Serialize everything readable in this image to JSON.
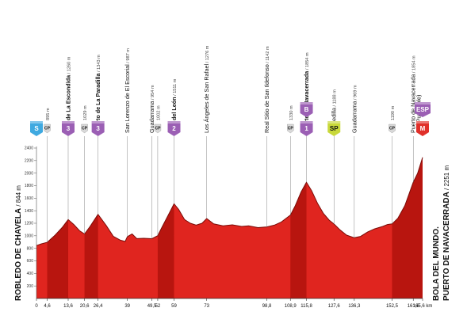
{
  "chart_data": {
    "type": "area",
    "title": "",
    "xlabel": "",
    "ylabel": "",
    "ylim": [
      0,
      2400
    ],
    "xlim": [
      0,
      165.6
    ],
    "yticks": [
      200,
      400,
      600,
      800,
      1000,
      1200,
      1400,
      1600,
      1800,
      2000,
      2200,
      2400
    ],
    "xticks": [
      "0",
      "4,6",
      "13,6",
      "20,6",
      "26,4",
      "39",
      "49,5",
      "52",
      "59",
      "73",
      "98,8",
      "108,9",
      "115,8",
      "127,6",
      "136,3",
      "152,5",
      "161,6",
      "165,6 km"
    ],
    "grid": false,
    "profile": [
      [
        0,
        844
      ],
      [
        2,
        870
      ],
      [
        4.6,
        895
      ],
      [
        8,
        1010
      ],
      [
        11,
        1130
      ],
      [
        13.6,
        1260
      ],
      [
        16,
        1180
      ],
      [
        18.5,
        1080
      ],
      [
        20.6,
        1029
      ],
      [
        23,
        1150
      ],
      [
        26.4,
        1343
      ],
      [
        30,
        1160
      ],
      [
        33,
        990
      ],
      [
        36,
        930
      ],
      [
        38,
        910
      ],
      [
        39,
        987
      ],
      [
        41,
        1030
      ],
      [
        43,
        955
      ],
      [
        46,
        960
      ],
      [
        49.5,
        954
      ],
      [
        52,
        1002
      ],
      [
        54,
        1150
      ],
      [
        56.5,
        1330
      ],
      [
        59,
        1511
      ],
      [
        61,
        1420
      ],
      [
        63.5,
        1260
      ],
      [
        66,
        1200
      ],
      [
        68.5,
        1170
      ],
      [
        71,
        1200
      ],
      [
        73,
        1276
      ],
      [
        76,
        1190
      ],
      [
        80,
        1160
      ],
      [
        84,
        1175
      ],
      [
        88,
        1150
      ],
      [
        91,
        1160
      ],
      [
        95,
        1130
      ],
      [
        98.8,
        1142
      ],
      [
        102,
        1170
      ],
      [
        105,
        1220
      ],
      [
        108.9,
        1330
      ],
      [
        111,
        1480
      ],
      [
        113.5,
        1700
      ],
      [
        115.8,
        1854
      ],
      [
        118,
        1720
      ],
      [
        120.5,
        1520
      ],
      [
        123,
        1360
      ],
      [
        125.5,
        1250
      ],
      [
        127.6,
        1188
      ],
      [
        130,
        1100
      ],
      [
        133,
        1010
      ],
      [
        136.3,
        969
      ],
      [
        139,
        990
      ],
      [
        142,
        1060
      ],
      [
        145,
        1110
      ],
      [
        148.5,
        1150
      ],
      [
        150.5,
        1180
      ],
      [
        152.5,
        1190
      ],
      [
        155,
        1280
      ],
      [
        158,
        1480
      ],
      [
        161.6,
        1854
      ],
      [
        163.5,
        2000
      ],
      [
        165.6,
        2251
      ]
    ],
    "annotations": [
      {
        "km": 13.6,
        "text": "Alto de La Escondida",
        "alt": "1260 m",
        "bold": true
      },
      {
        "km": 20.6,
        "text": "",
        "alt": "1029 m",
        "bold": false
      },
      {
        "km": 26.4,
        "text": "Puerto de La Paradilla",
        "alt": "1343 m",
        "bold": true
      },
      {
        "km": 4.6,
        "text": "",
        "alt": "895 m",
        "bold": false
      },
      {
        "km": 39,
        "text": "San Lorenzo de El Escorial",
        "alt": "987 m",
        "bold": false
      },
      {
        "km": 49.5,
        "text": "Guadarrama",
        "alt": "954 m",
        "bold": false
      },
      {
        "km": 52,
        "text": "",
        "alt": "1002 m",
        "bold": false
      },
      {
        "km": 59,
        "text": "Alto del León",
        "alt": "1511 m",
        "bold": true
      },
      {
        "km": 73,
        "text": "Los Ángeles de San Rafael",
        "alt": "1276 m",
        "bold": false
      },
      {
        "km": 98.8,
        "text": "Real Sitio de San Ildefonso",
        "alt": "1142 m",
        "bold": false
      },
      {
        "km": 108.9,
        "text": "",
        "alt": "1330 m",
        "bold": false
      },
      {
        "km": 115.8,
        "text": "Puerto de Navacerrada",
        "alt": "1854 m",
        "bold": true
      },
      {
        "km": 127.6,
        "text": "Cercedilla",
        "alt": "1188 m",
        "bold": false
      },
      {
        "km": 136.3,
        "text": "Guadarrama",
        "alt": "969 m",
        "bold": false
      },
      {
        "km": 152.5,
        "text": "",
        "alt": "1190 m",
        "bold": false
      },
      {
        "km": 161.6,
        "text": "Puerto de Navacerrada",
        "alt": "1854 m",
        "bold": false
      },
      {
        "km": 161.6,
        "text": "(No Puntuable)",
        "alt": "",
        "bold": false,
        "note": true
      }
    ],
    "start": {
      "name": "ROBLEDO DE CHAVELA",
      "alt": "844 m"
    },
    "finish": {
      "name1": "BOLA DEL MUNDO.",
      "name2": "PUERTO DE NAVACERRADA",
      "alt": "2251 m"
    },
    "badges": [
      {
        "km": 0,
        "label": "S",
        "kind": "start",
        "color": "#3fa9e0"
      },
      {
        "km": 4.6,
        "label": "CP",
        "kind": "cp",
        "color": "#d9d9d9"
      },
      {
        "km": 13.6,
        "label": "3",
        "kind": "mountain",
        "color": "#9b5fb4"
      },
      {
        "km": 20.6,
        "label": "CP",
        "kind": "cp",
        "color": "#d9d9d9"
      },
      {
        "km": 26.4,
        "label": "3",
        "kind": "mountain",
        "color": "#9b5fb4"
      },
      {
        "km": 52,
        "label": "CP",
        "kind": "cp",
        "color": "#d9d9d9"
      },
      {
        "km": 59,
        "label": "2",
        "kind": "mountain",
        "color": "#9b5fb4"
      },
      {
        "km": 108.9,
        "label": "CP",
        "kind": "cp",
        "color": "#d9d9d9"
      },
      {
        "km": 115.8,
        "label": "1",
        "kind": "mountain",
        "color": "#9b5fb4"
      },
      {
        "km": 115.8,
        "label": "B",
        "kind": "bonus",
        "color": "#9b5fb4"
      },
      {
        "km": 127.6,
        "label": "SP",
        "kind": "sprint",
        "color": "#c8d83a"
      },
      {
        "km": 152.5,
        "label": "CP",
        "kind": "cp",
        "color": "#d9d9d9"
      },
      {
        "km": 165.6,
        "label": "M",
        "kind": "finish",
        "color": "#e0302a"
      },
      {
        "km": 165.6,
        "label": "ESP",
        "kind": "special",
        "color": "#9b5fb4"
      }
    ],
    "colors": {
      "fill": "#e0251f",
      "shade": "#b8150f",
      "line": "#7a0c08"
    }
  }
}
